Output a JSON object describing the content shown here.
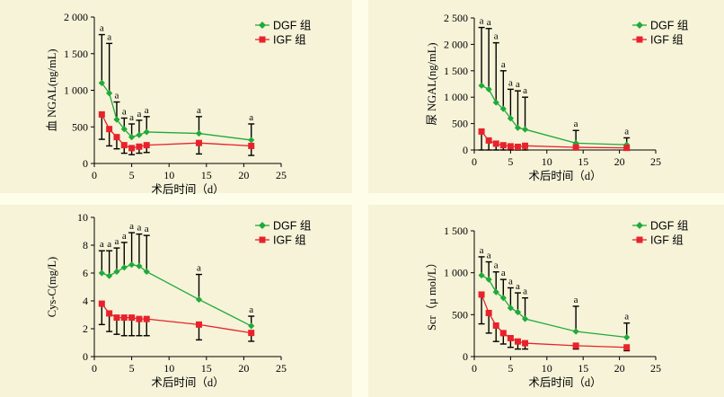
{
  "colors": {
    "dgf": "#1faa3a",
    "igf": "#e8222c",
    "background": "#f6f3d8"
  },
  "chart_data": [
    {
      "type": "line",
      "xlabel": "术后时间（d）",
      "ylabel": "血 NGAL(ng/mL)",
      "xlim": [
        0,
        25
      ],
      "xticks": [
        0,
        5,
        10,
        15,
        20,
        25
      ],
      "ylim": [
        0,
        2000
      ],
      "yticks": [
        0,
        500,
        1000,
        1500,
        2000
      ],
      "yticklabels": [
        "0",
        "500",
        "1 000",
        "1 500",
        "2 000"
      ],
      "legend_position": "top-right",
      "x": [
        1,
        2,
        3,
        4,
        5,
        6,
        7,
        14,
        21
      ],
      "series": [
        {
          "name": "DGF 组",
          "color": "#1faa3a",
          "marker": "diamond",
          "values": [
            1100,
            960,
            600,
            470,
            360,
            390,
            430,
            410,
            320
          ],
          "err_upper": [
            1760,
            1640,
            840,
            620,
            540,
            590,
            640,
            640,
            540
          ]
        },
        {
          "name": "IGF 组",
          "color": "#e8222c",
          "marker": "square",
          "values": [
            670,
            470,
            360,
            250,
            210,
            230,
            250,
            280,
            240
          ],
          "err_lower": [
            330,
            240,
            200,
            140,
            120,
            140,
            150,
            130,
            110
          ]
        }
      ],
      "annotations": {
        "text": "a",
        "x": [
          1,
          2,
          3,
          4,
          5,
          6,
          7,
          14,
          21
        ]
      }
    },
    {
      "type": "line",
      "xlabel": "术后时间（d）",
      "ylabel": "尿 NGAL(ng/mL)",
      "xlim": [
        0,
        25
      ],
      "xticks": [
        0,
        5,
        10,
        15,
        20,
        25
      ],
      "ylim": [
        0,
        2500
      ],
      "yticks": [
        0,
        500,
        1000,
        1500,
        2000,
        2500
      ],
      "yticklabels": [
        "0",
        "500",
        "1 000",
        "1 500",
        "2 000",
        "2 500"
      ],
      "legend_position": "top-right",
      "x": [
        1,
        2,
        3,
        4,
        5,
        6,
        7,
        14,
        21
      ],
      "series": [
        {
          "name": "DGF 组",
          "color": "#1faa3a",
          "marker": "diamond",
          "values": [
            1220,
            1150,
            900,
            780,
            600,
            420,
            390,
            130,
            100
          ],
          "err_upper": [
            2320,
            2300,
            2030,
            1500,
            1150,
            1120,
            1000,
            370,
            230
          ]
        },
        {
          "name": "IGF 组",
          "color": "#e8222c",
          "marker": "square",
          "values": [
            350,
            180,
            120,
            90,
            70,
            60,
            80,
            50,
            40
          ],
          "err_lower": [
            0,
            0,
            0,
            0,
            0,
            0,
            0,
            0,
            0
          ]
        }
      ],
      "annotations": {
        "text": "a",
        "x": [
          1,
          2,
          3,
          4,
          5,
          6,
          7,
          14,
          21
        ]
      }
    },
    {
      "type": "line",
      "xlabel": "术后时间（d）",
      "ylabel": "Cys-C(mg/L)",
      "xlim": [
        0,
        25
      ],
      "xticks": [
        0,
        5,
        10,
        15,
        20,
        25
      ],
      "ylim": [
        0,
        10
      ],
      "yticks": [
        0,
        2,
        4,
        6,
        8,
        10
      ],
      "yticklabels": [
        "0",
        "2",
        "4",
        "6",
        "8",
        "10"
      ],
      "legend_position": "top-right",
      "x": [
        1,
        2,
        3,
        4,
        5,
        6,
        7,
        14,
        21
      ],
      "series": [
        {
          "name": "DGF 组",
          "color": "#1faa3a",
          "marker": "diamond",
          "values": [
            6.0,
            5.8,
            6.1,
            6.4,
            6.6,
            6.5,
            6.1,
            4.1,
            2.2
          ],
          "err_upper": [
            7.6,
            7.6,
            7.8,
            8.2,
            8.9,
            8.8,
            8.7,
            5.9,
            2.9
          ]
        },
        {
          "name": "IGF 组",
          "color": "#e8222c",
          "marker": "square",
          "values": [
            3.8,
            3.1,
            2.8,
            2.8,
            2.8,
            2.7,
            2.7,
            2.3,
            1.7
          ],
          "err_lower": [
            2.3,
            1.8,
            1.6,
            1.5,
            1.5,
            1.5,
            1.5,
            1.2,
            1.1
          ]
        }
      ],
      "annotations": {
        "text": "a",
        "x": [
          1,
          2,
          3,
          4,
          5,
          6,
          7,
          14,
          21
        ]
      }
    },
    {
      "type": "line",
      "xlabel": "术后时间（d）",
      "ylabel": "Scr（μ mol/L）",
      "xlim": [
        0,
        25
      ],
      "xticks": [
        0,
        5,
        10,
        15,
        20,
        25
      ],
      "ylim": [
        0,
        1500
      ],
      "yticks": [
        0,
        500,
        1000,
        1500
      ],
      "yticklabels": [
        "0",
        "500",
        "1 000",
        "1 500"
      ],
      "legend_position": "top-right",
      "x": [
        1,
        2,
        3,
        4,
        5,
        6,
        7,
        14,
        21
      ],
      "series": [
        {
          "name": "DGF 组",
          "color": "#1faa3a",
          "marker": "diamond",
          "values": [
            970,
            920,
            770,
            700,
            580,
            530,
            450,
            300,
            230
          ],
          "err_upper": [
            1190,
            1130,
            1010,
            920,
            820,
            760,
            700,
            600,
            400
          ]
        },
        {
          "name": "IGF 组",
          "color": "#e8222c",
          "marker": "square",
          "values": [
            740,
            520,
            370,
            280,
            220,
            180,
            160,
            130,
            110
          ],
          "err_lower": [
            390,
            280,
            180,
            150,
            110,
            90,
            90,
            90,
            70
          ]
        }
      ],
      "annotations": {
        "text": "a",
        "x": [
          1,
          2,
          3,
          4,
          5,
          6,
          7,
          14,
          21
        ]
      }
    }
  ]
}
